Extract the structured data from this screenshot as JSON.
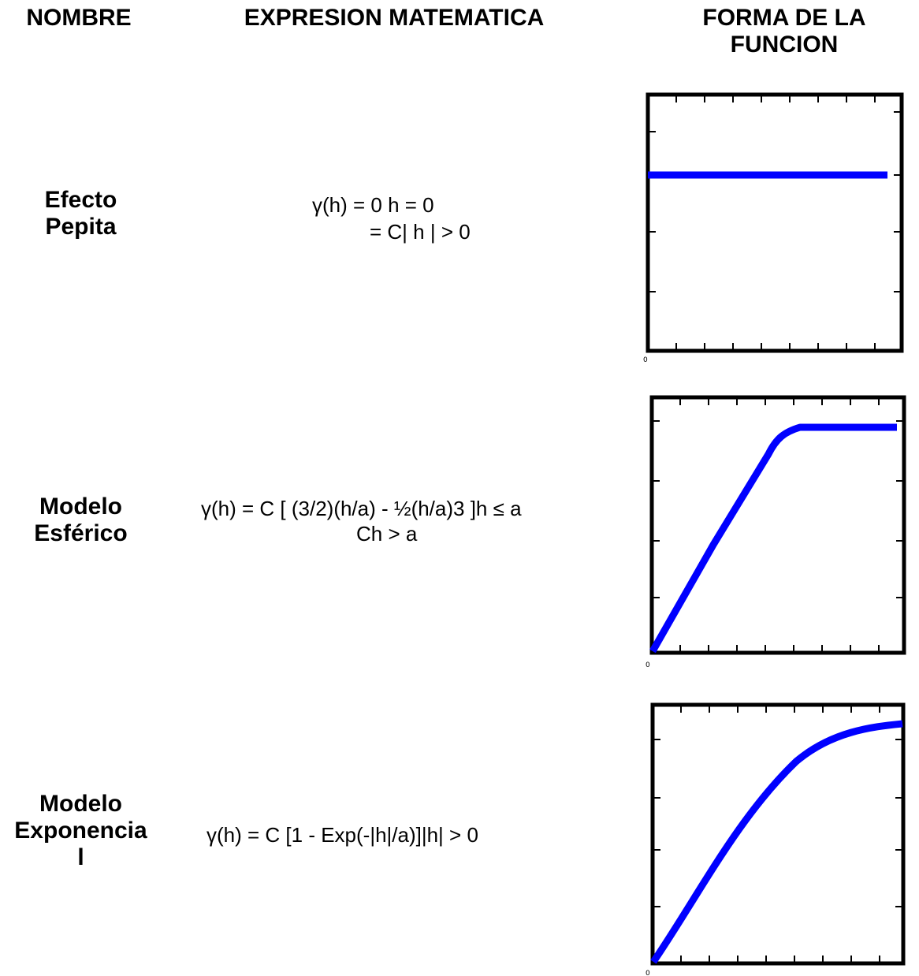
{
  "headers": {
    "name": "NOMBRE",
    "expression": "EXPRESION MATEMATICA",
    "shape_line1": "FORMA DE LA",
    "shape_line2": "FUNCION"
  },
  "rows": [
    {
      "name_lines": [
        "Efecto",
        "Pepita"
      ],
      "formula_lines": [
        "γ(h) = 0 h = 0",
        "= C| h | > 0"
      ],
      "axis_origin": "0",
      "curve": "flat"
    },
    {
      "name_lines": [
        "Modelo",
        "Esférico"
      ],
      "formula_lines": [
        "γ(h) = C [ (3/2)(h/a) - ½(h/a)3 ]h ≤ a",
        "Ch > a"
      ],
      "axis_origin": "0",
      "curve": "spherical"
    },
    {
      "name_lines": [
        "Modelo",
        "Exponencia",
        "l"
      ],
      "formula_lines": [
        "γ(h) = C [1 - Exp(-|h|/a)]|h| > 0"
      ],
      "axis_origin": "0",
      "curve": "exponential"
    }
  ],
  "colors": {
    "curve": "#0000ff",
    "frame": "#000000"
  }
}
